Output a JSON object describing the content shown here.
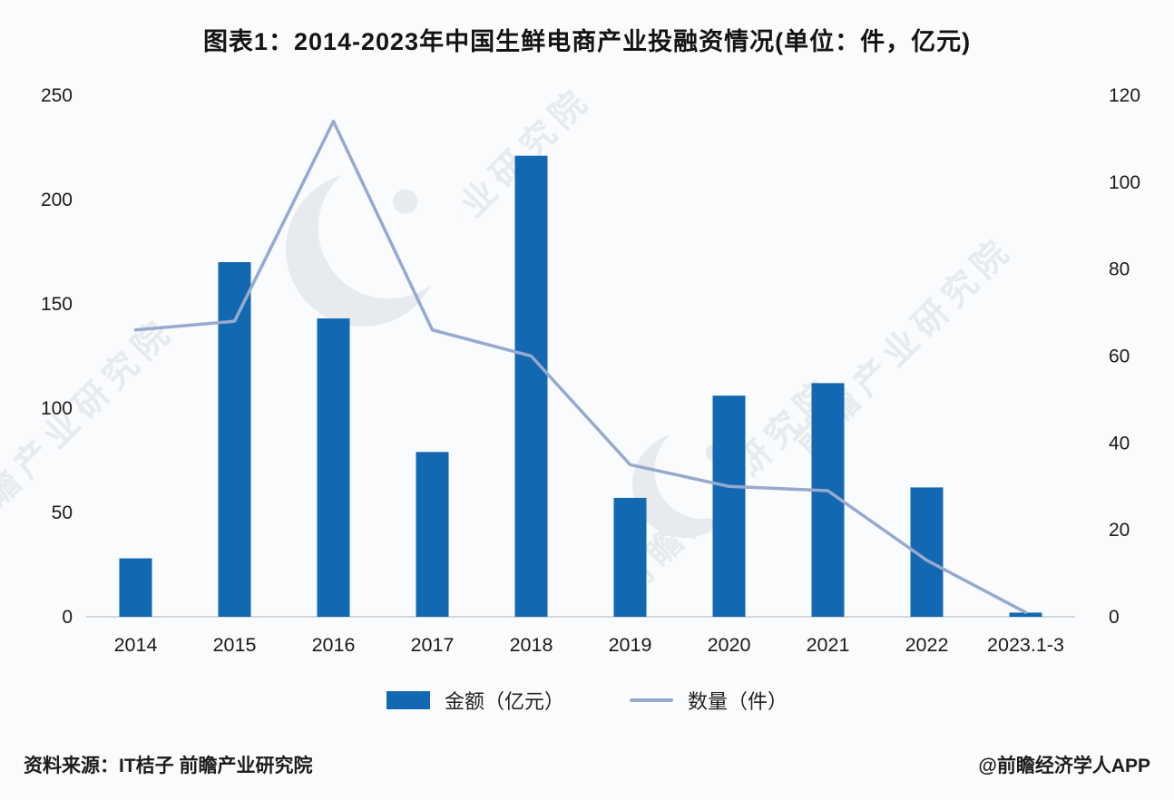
{
  "page": {
    "background": "#fafbfc"
  },
  "chart": {
    "title": "图表1：2014-2023年中国生鲜电商产业投融资情况(单位：件，亿元)",
    "legend": [
      {
        "label": "金额（亿元）",
        "type": "bar"
      },
      {
        "label": "数量（件）",
        "type": "line"
      }
    ]
  },
  "chart_data": {
    "type": "bar+line",
    "title": "图表1：2014-2023年中国生鲜电商产业投融资情况(单位：件，亿元)",
    "categories": [
      "2014",
      "2015",
      "2016",
      "2017",
      "2018",
      "2019",
      "2020",
      "2021",
      "2022",
      "2023.1-3"
    ],
    "series": [
      {
        "name": "金额（亿元）",
        "type": "bar",
        "axis": "left",
        "color": "#1268b1",
        "values": [
          28,
          170,
          143,
          79,
          221,
          57,
          106,
          112,
          62,
          2
        ]
      },
      {
        "name": "数量（件）",
        "type": "line",
        "axis": "right",
        "color": "#97a9cf",
        "values": [
          66,
          68,
          114,
          66,
          60,
          35,
          30,
          29,
          13,
          1
        ]
      }
    ],
    "left_axis": {
      "min": 0,
      "max": 250,
      "step": 50,
      "ticks": [
        0,
        50,
        100,
        150,
        200,
        250
      ]
    },
    "right_axis": {
      "min": 0,
      "max": 120,
      "step": 20,
      "ticks": [
        0,
        20,
        40,
        60,
        80,
        100,
        120
      ]
    },
    "grid": false,
    "legend_position": "bottom",
    "axis_text_color": "#1a1a1a",
    "baseline_color": "#c8ccd1"
  },
  "watermark": {
    "text": "前瞻产业研究院",
    "color": "#e7eaee"
  },
  "footer": {
    "source": "资料来源：IT桔子 前瞻产业研究院",
    "credit": "@前瞻经济学人APP"
  }
}
